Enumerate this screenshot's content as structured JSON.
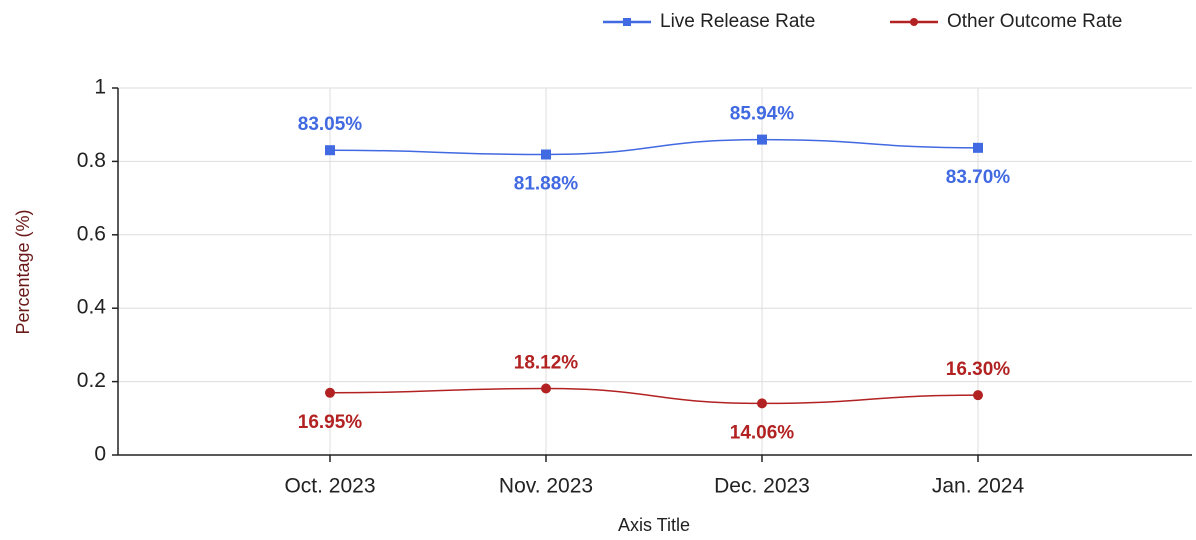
{
  "chart_data": {
    "type": "line",
    "categories": [
      "Oct. 2023",
      "Nov. 2023",
      "Dec. 2023",
      "Jan. 2024"
    ],
    "series": [
      {
        "name": "Live Release Rate",
        "color": "#4169e1",
        "marker": "square",
        "values": [
          0.8305,
          0.8188,
          0.8594,
          0.837
        ],
        "value_labels": [
          "83.05%",
          "81.88%",
          "85.94%",
          "83.70%"
        ]
      },
      {
        "name": "Other Outcome Rate",
        "color": "#b22222",
        "marker": "circle",
        "values": [
          0.1695,
          0.1812,
          0.1406,
          0.163
        ],
        "value_labels": [
          "16.95%",
          "18.12%",
          "14.06%",
          "16.30%"
        ]
      }
    ],
    "ylim": [
      0,
      1
    ],
    "yticks": [
      0,
      0.2,
      0.4,
      0.6,
      0.8,
      1
    ],
    "y_label": "Percentage (%)",
    "x_label": "Axis Title",
    "grid": true,
    "legend": "top-right"
  }
}
